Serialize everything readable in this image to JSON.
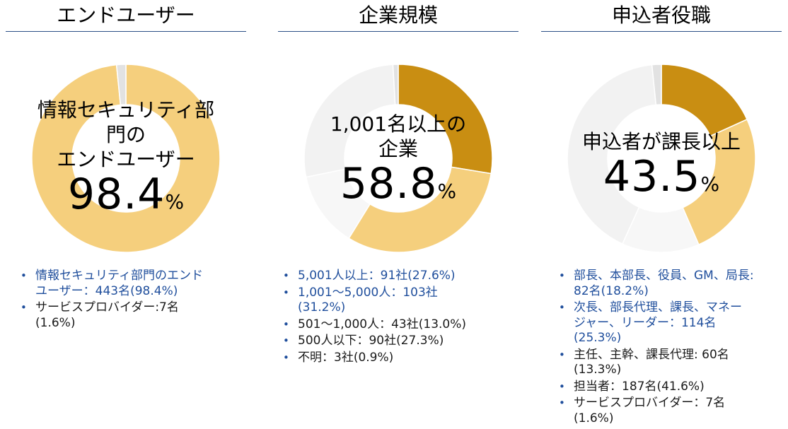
{
  "panels": [
    {
      "title": "エンドユーザー",
      "center_label_lines": [
        "情報セキュリティ部",
        "門の",
        "エンドユーザー"
      ],
      "center_value": "98.4",
      "center_unit": "%",
      "bullets": [
        {
          "lines": [
            "情報セキュリティ部門のエンド",
            "ユーザー：443名(98.4%)"
          ],
          "color": "blue"
        },
        {
          "lines": [
            "サービスプロバイダー:7名",
            "(1.6%)"
          ],
          "color": "black"
        }
      ]
    },
    {
      "title": "企業規模",
      "center_label_lines": [
        "1,001名以上の",
        "企業"
      ],
      "center_value": "58.8",
      "center_unit": "%",
      "bullets": [
        {
          "lines": [
            "5,001人以上：91社(27.6%)"
          ],
          "color": "blue"
        },
        {
          "lines": [
            "1,001～5,000人：103社",
            "(31.2%)"
          ],
          "color": "blue"
        },
        {
          "lines": [
            "501～1,000人：43社(13.0%)"
          ],
          "color": "black"
        },
        {
          "lines": [
            "500人以下：90社(27.3%)"
          ],
          "color": "black"
        },
        {
          "lines": [
            "不明：3社(0.9%)"
          ],
          "color": "black"
        }
      ]
    },
    {
      "title": "申込者役職",
      "center_label_lines": [
        "申込者が課長以上"
      ],
      "center_value": "43.5",
      "center_unit": "%",
      "bullets": [
        {
          "lines": [
            "部長、本部長、役員、GM、局長:",
            "82名(18.2%)"
          ],
          "color": "blue"
        },
        {
          "lines": [
            "次長、部長代理、課長、マネー",
            "ジャー、リーダー：114名",
            "(25.3%)"
          ],
          "color": "blue"
        },
        {
          "lines": [
            "主任、主幹、課長代理: 60名",
            "(13.3%)"
          ],
          "color": "black"
        },
        {
          "lines": [
            "担当者：187名(41.6%)"
          ],
          "color": "black"
        },
        {
          "lines": [
            "サービスプロバイダー：7名",
            "(1.6%)"
          ],
          "color": "black"
        }
      ]
    }
  ],
  "colors": {
    "dark_gold": "#c98e12",
    "light_gold": "#f5cf7d",
    "light_gray": "#f2f2f2",
    "lighter_gray": "#f7f7f7",
    "mid_gray": "#e2e2e2",
    "rule_blue": "#2b4f86",
    "text_blue": "#1f4e9c"
  },
  "chart_data": [
    {
      "type": "pie",
      "title": "エンドユーザー",
      "categories": [
        "情報セキュリティ部門のエンドユーザー",
        "サービスプロバイダー"
      ],
      "values": [
        98.4,
        1.6
      ],
      "colors": [
        "#f5cf7d",
        "#e2e2e2"
      ]
    },
    {
      "type": "pie",
      "title": "企業規模",
      "categories": [
        "5,001人以上",
        "1,001～5,000人",
        "501～1,000人",
        "500人以下",
        "不明"
      ],
      "values": [
        27.6,
        31.2,
        13.0,
        27.3,
        0.9
      ],
      "colors": [
        "#c98e12",
        "#f5cf7d",
        "#f7f7f7",
        "#f2f2f2",
        "#e2e2e2"
      ]
    },
    {
      "type": "pie",
      "title": "申込者役職",
      "categories": [
        "部長、本部長、役員、GM、局長",
        "次長、部長代理、課長、マネージャー、リーダー",
        "主任、主幹、課長代理",
        "担当者",
        "サービスプロバイダー"
      ],
      "values": [
        18.2,
        25.3,
        13.3,
        41.6,
        1.6
      ],
      "colors": [
        "#c98e12",
        "#f5cf7d",
        "#f7f7f7",
        "#f2f2f2",
        "#e2e2e2"
      ]
    }
  ]
}
